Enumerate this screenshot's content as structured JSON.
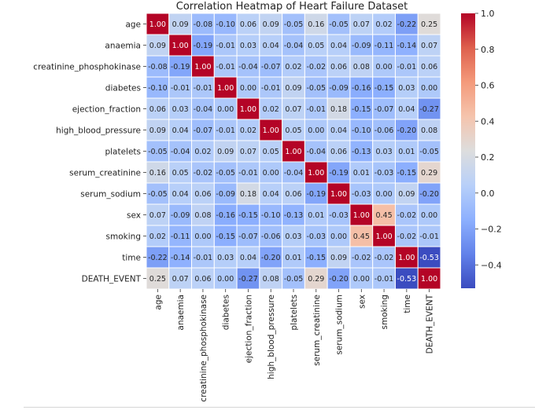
{
  "chart_data": {
    "type": "heatmap",
    "title": "Correlation Heatmap of Heart Failure Dataset",
    "xlabel": "",
    "ylabel": "",
    "labels": [
      "age",
      "anaemia",
      "creatinine_phosphokinase",
      "diabetes",
      "ejection_fraction",
      "high_blood_pressure",
      "platelets",
      "serum_creatinine",
      "serum_sodium",
      "sex",
      "smoking",
      "time",
      "DEATH_EVENT"
    ],
    "values": [
      [
        1.0,
        0.09,
        -0.08,
        -0.1,
        0.06,
        0.09,
        -0.05,
        0.16,
        -0.05,
        0.07,
        0.02,
        -0.22,
        0.25
      ],
      [
        0.09,
        1.0,
        -0.19,
        -0.01,
        0.03,
        0.04,
        -0.04,
        0.05,
        0.04,
        -0.09,
        -0.11,
        -0.14,
        0.07
      ],
      [
        -0.08,
        -0.19,
        1.0,
        -0.01,
        -0.04,
        -0.07,
        0.02,
        -0.02,
        0.06,
        0.08,
        0.0,
        -0.01,
        0.06
      ],
      [
        -0.1,
        -0.01,
        -0.01,
        1.0,
        -0.0,
        -0.01,
        0.09,
        -0.05,
        -0.09,
        -0.16,
        -0.15,
        0.03,
        -0.0
      ],
      [
        0.06,
        0.03,
        -0.04,
        -0.0,
        1.0,
        0.02,
        0.07,
        -0.01,
        0.18,
        -0.15,
        -0.07,
        0.04,
        -0.27
      ],
      [
        0.09,
        0.04,
        -0.07,
        -0.01,
        0.02,
        1.0,
        0.05,
        -0.0,
        0.04,
        -0.1,
        -0.06,
        -0.2,
        0.08
      ],
      [
        -0.05,
        -0.04,
        0.02,
        0.09,
        0.07,
        0.05,
        1.0,
        -0.04,
        0.06,
        -0.13,
        0.03,
        0.01,
        -0.05
      ],
      [
        0.16,
        0.05,
        -0.02,
        -0.05,
        -0.01,
        -0.0,
        -0.04,
        1.0,
        -0.19,
        0.01,
        -0.03,
        -0.15,
        0.29
      ],
      [
        -0.05,
        0.04,
        0.06,
        -0.09,
        0.18,
        0.04,
        0.06,
        -0.19,
        1.0,
        -0.03,
        0.0,
        0.09,
        -0.2
      ],
      [
        0.07,
        -0.09,
        0.08,
        -0.16,
        -0.15,
        -0.1,
        -0.13,
        0.01,
        -0.03,
        1.0,
        0.45,
        -0.02,
        -0.0
      ],
      [
        0.02,
        -0.11,
        0.0,
        -0.15,
        -0.07,
        -0.06,
        0.03,
        -0.03,
        0.0,
        0.45,
        1.0,
        -0.02,
        -0.01
      ],
      [
        -0.22,
        -0.14,
        -0.01,
        0.03,
        0.04,
        -0.2,
        0.01,
        -0.15,
        0.09,
        -0.02,
        -0.02,
        1.0,
        -0.53
      ],
      [
        0.25,
        0.07,
        0.06,
        -0.0,
        -0.27,
        0.08,
        -0.05,
        0.29,
        -0.2,
        -0.0,
        -0.01,
        -0.53,
        1.0
      ]
    ],
    "colormap": "coolwarm",
    "vmin": -0.53,
    "vmax": 1.0,
    "colorbar_ticks": [
      1.0,
      0.8,
      0.6,
      0.4,
      0.2,
      0.0,
      -0.2,
      -0.4
    ],
    "colorbar_tick_labels": [
      "1.0",
      "0.8",
      "0.6",
      "0.4",
      "0.2",
      "0.0",
      "−0.2",
      "−0.4"
    ],
    "grid": true,
    "annotations": true
  }
}
